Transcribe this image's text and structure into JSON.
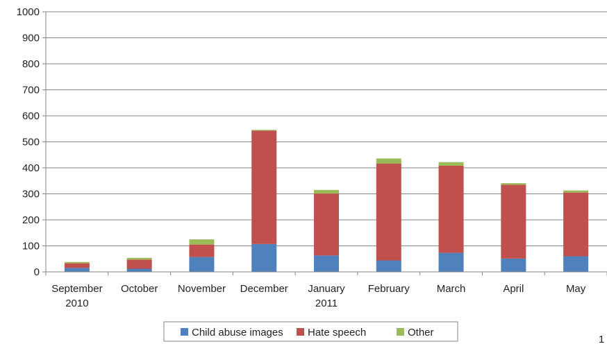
{
  "chart_data": {
    "type": "bar",
    "stacked": true,
    "categories": [
      [
        "September",
        "2010"
      ],
      [
        "October"
      ],
      [
        "November"
      ],
      [
        "December"
      ],
      [
        "January",
        "2011"
      ],
      [
        "February"
      ],
      [
        "March"
      ],
      [
        "April"
      ],
      [
        "May"
      ]
    ],
    "series": [
      {
        "name": "Child abuse images",
        "color": "#4f81bd",
        "values": [
          15,
          12,
          57,
          107,
          63,
          44,
          73,
          51,
          60
        ]
      },
      {
        "name": "Hate speech",
        "color": "#c0504d",
        "values": [
          18,
          35,
          48,
          436,
          238,
          372,
          335,
          284,
          245
        ]
      },
      {
        "name": "Other",
        "color": "#9bbb59",
        "values": [
          5,
          7,
          20,
          3,
          14,
          20,
          14,
          6,
          8
        ]
      }
    ],
    "ylim": [
      0,
      1000
    ],
    "yticks": [
      0,
      100,
      200,
      300,
      400,
      500,
      600,
      700,
      800,
      900,
      1000
    ],
    "grid": true,
    "legend_position": "bottom",
    "title": "",
    "xlabel": "",
    "ylabel": ""
  },
  "page_number": "1"
}
